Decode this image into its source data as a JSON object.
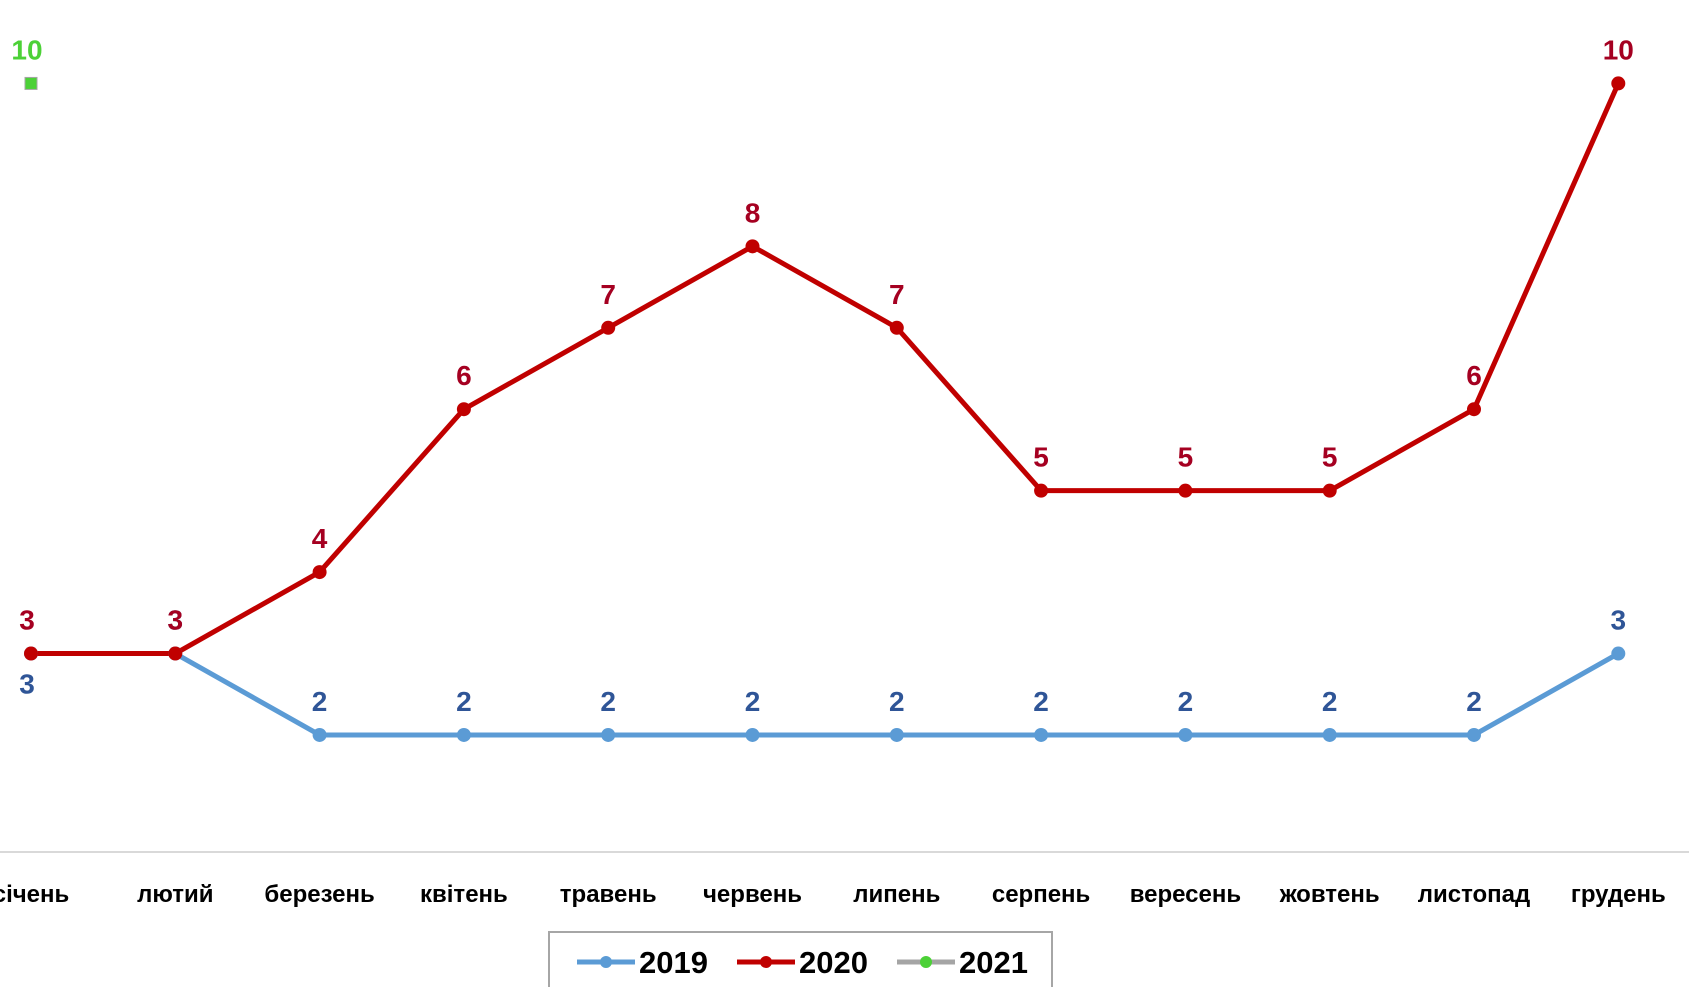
{
  "chart_data": {
    "type": "line",
    "categories": [
      "січень",
      "лютий",
      "березень",
      "квітень",
      "травень",
      "червень",
      "липень",
      "серпень",
      "вересень",
      "жовтень",
      "листопад",
      "грудень"
    ],
    "series": [
      {
        "name": "2019",
        "color": "#5B9BD5",
        "label_color": "#2F5597",
        "values": [
          3,
          3,
          2,
          2,
          2,
          2,
          2,
          2,
          2,
          2,
          2,
          3
        ]
      },
      {
        "name": "2020",
        "color": "#C00000",
        "label_color": "#A50021",
        "values": [
          3,
          3,
          4,
          6,
          7,
          8,
          7,
          5,
          5,
          5,
          6,
          10
        ]
      },
      {
        "name": "2021",
        "color": "#A5A5A5",
        "label_color": "#4CD137",
        "marker_color": "#4CD137",
        "values": [
          10,
          null,
          null,
          null,
          null,
          null,
          null,
          null,
          null,
          null,
          null,
          null
        ]
      }
    ],
    "ylim": [
      0.6,
      10.3
    ],
    "grid": false,
    "legend": "bottom"
  }
}
